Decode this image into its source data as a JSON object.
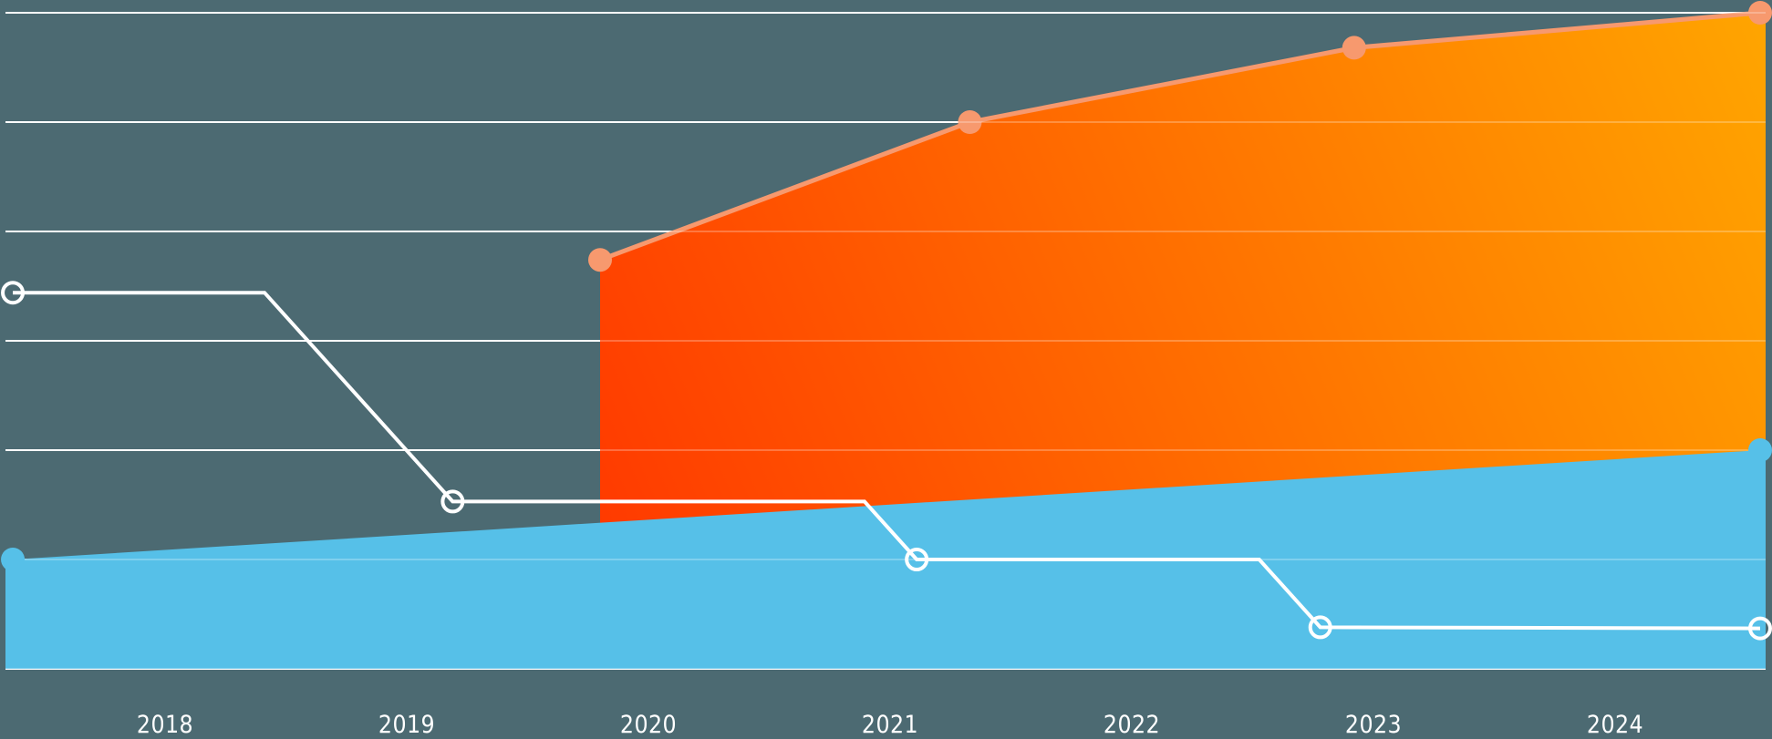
{
  "chart_data": {
    "type": "area",
    "title": "",
    "xlabel": "",
    "ylabel": "",
    "categories": [
      "2018",
      "2019",
      "2020",
      "2021",
      "2022",
      "2023",
      "2024"
    ],
    "ylim": [
      0,
      6
    ],
    "grid": true,
    "legend": null,
    "series": [
      {
        "name": "blue-area",
        "kind": "area",
        "color": "#56C0E8",
        "points": [
          {
            "x": 2017.37,
            "y": 1.0
          },
          {
            "x": 2024.6,
            "y": 2.0
          }
        ]
      },
      {
        "name": "orange-area",
        "kind": "area-range",
        "gradient": [
          "#FF3A00",
          "#FFA500"
        ],
        "line_color": "#F7996E",
        "points": [
          {
            "x": 2019.8,
            "y": 3.74
          },
          {
            "x": 2021.33,
            "y": 5.0
          },
          {
            "x": 2022.92,
            "y": 5.68
          },
          {
            "x": 2024.6,
            "y": 6.0
          }
        ]
      },
      {
        "name": "white-step-line",
        "kind": "line",
        "color": "#FFFFFF",
        "points": [
          {
            "x": 2017.37,
            "y": 3.44
          },
          {
            "x": 2019.19,
            "y": 1.53
          },
          {
            "x": 2021.11,
            "y": 1.0
          },
          {
            "x": 2022.78,
            "y": 0.38
          },
          {
            "x": 2024.6,
            "y": 0.37
          }
        ]
      }
    ]
  },
  "colors": {
    "background": "#4C6A72",
    "grid": "#FFFFFF",
    "blue": "#56C0E8",
    "orange_start": "#FF3A00",
    "orange_end": "#FFA500",
    "orange_marker": "#F7996E",
    "white_line": "#FFFFFF"
  },
  "axis": {
    "x_labels": [
      "2018",
      "2019",
      "2020",
      "2021",
      "2022",
      "2023",
      "2024"
    ]
  }
}
